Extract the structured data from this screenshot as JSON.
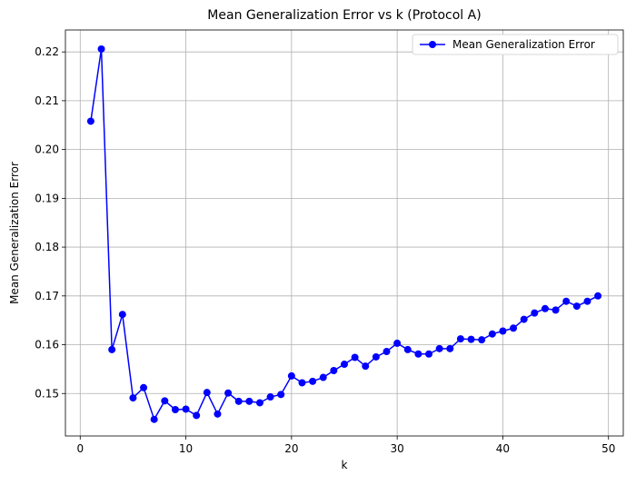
{
  "chart_data": {
    "type": "line",
    "title": "Mean Generalization Error vs k (Protocol A)",
    "xlabel": "k",
    "ylabel": "Mean Generalization Error",
    "xlim": [
      -1.4,
      51.4
    ],
    "ylim": [
      0.1413,
      0.2245
    ],
    "xticks": [
      0,
      10,
      20,
      30,
      40,
      50
    ],
    "yticks": [
      0.15,
      0.16,
      0.17,
      0.18,
      0.19,
      0.2,
      0.21,
      0.22
    ],
    "grid": true,
    "legend_position": "top-right",
    "series": [
      {
        "name": "Mean Generalization Error",
        "color": "#0000ff",
        "marker": "circle",
        "x": [
          1,
          2,
          3,
          4,
          5,
          6,
          7,
          8,
          9,
          10,
          11,
          12,
          13,
          14,
          15,
          16,
          17,
          18,
          19,
          20,
          21,
          22,
          23,
          24,
          25,
          26,
          27,
          28,
          29,
          30,
          31,
          32,
          33,
          34,
          35,
          36,
          37,
          38,
          39,
          40,
          41,
          42,
          43,
          44,
          45,
          46,
          47,
          48,
          49
        ],
        "y": [
          0.2058,
          0.2206,
          0.159,
          0.1662,
          0.1491,
          0.1512,
          0.1447,
          0.1485,
          0.1467,
          0.1468,
          0.1455,
          0.1502,
          0.1458,
          0.1501,
          0.1484,
          0.1484,
          0.1481,
          0.1493,
          0.1498,
          0.1536,
          0.1522,
          0.1525,
          0.1533,
          0.1547,
          0.156,
          0.1574,
          0.1556,
          0.1575,
          0.1586,
          0.1603,
          0.159,
          0.1581,
          0.1581,
          0.1592,
          0.1592,
          0.1612,
          0.1611,
          0.161,
          0.1622,
          0.1628,
          0.1634,
          0.1652,
          0.1665,
          0.1674,
          0.1671,
          0.1689,
          0.1679,
          0.1689,
          0.17
        ]
      }
    ]
  }
}
